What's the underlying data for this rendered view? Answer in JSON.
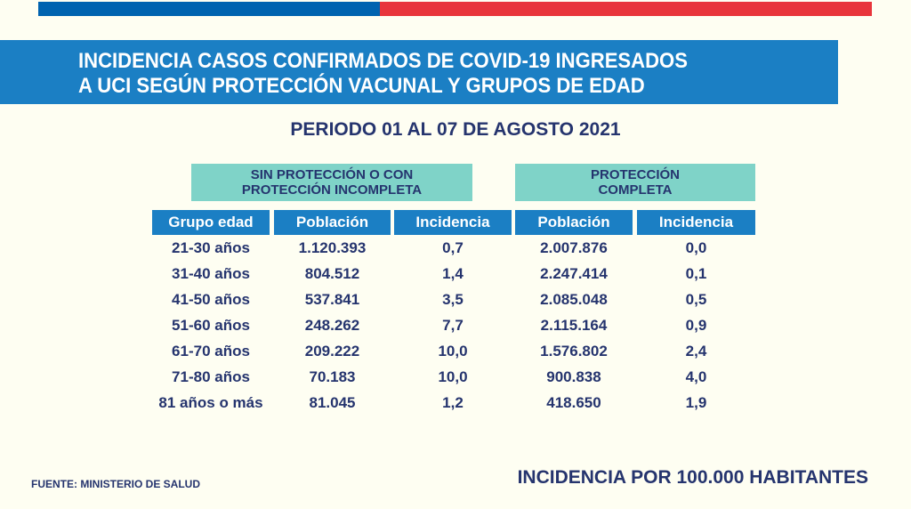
{
  "title": {
    "line1": "INCIDENCIA CASOS CONFIRMADOS DE COVID-19 INGRESADOS",
    "line2": "A UCI SEGÚN PROTECCIÓN VACUNAL Y GRUPOS DE EDAD"
  },
  "period": "PERIODO 01 AL 07 DE AGOSTO 2021",
  "groups": {
    "g1_line1": "SIN PROTECCIÓN O CON",
    "g1_line2": "PROTECCIÓN INCOMPLETA",
    "g2_line1": "PROTECCIÓN",
    "g2_line2": "COMPLETA"
  },
  "headers": [
    "Grupo edad",
    "Población",
    "Incidencia",
    "Población",
    "Incidencia"
  ],
  "rows": [
    [
      "21-30 años",
      "1.120.393",
      "0,7",
      "2.007.876",
      "0,0"
    ],
    [
      "31-40 años",
      "804.512",
      "1,4",
      "2.247.414",
      "0,1"
    ],
    [
      "41-50 años",
      "537.841",
      "3,5",
      "2.085.048",
      "0,5"
    ],
    [
      "51-60 años",
      "248.262",
      "7,7",
      "2.115.164",
      "0,9"
    ],
    [
      "61-70 años",
      "209.222",
      "10,0",
      "1.576.802",
      "2,4"
    ],
    [
      "71-80 años",
      "70.183",
      "10,0",
      "900.838",
      "4,0"
    ],
    [
      "81 años o más",
      "81.045",
      "1,2",
      "418.650",
      "1,9"
    ]
  ],
  "footer": {
    "source": "FUENTE: MINISTERIO DE SALUD",
    "unit": "INCIDENCIA POR 100.000 HABITANTES"
  },
  "colors": {
    "blue": "#1b7fc4",
    "red": "#e8353b",
    "teal": "#7fd3c8",
    "navy": "#25346e"
  }
}
